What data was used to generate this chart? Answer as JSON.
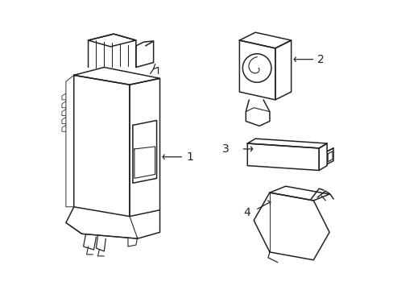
{
  "background_color": "#ffffff",
  "line_color": "#222222",
  "line_width": 1.1,
  "fig_width": 4.89,
  "fig_height": 3.6,
  "dpi": 100,
  "font_size": 10
}
